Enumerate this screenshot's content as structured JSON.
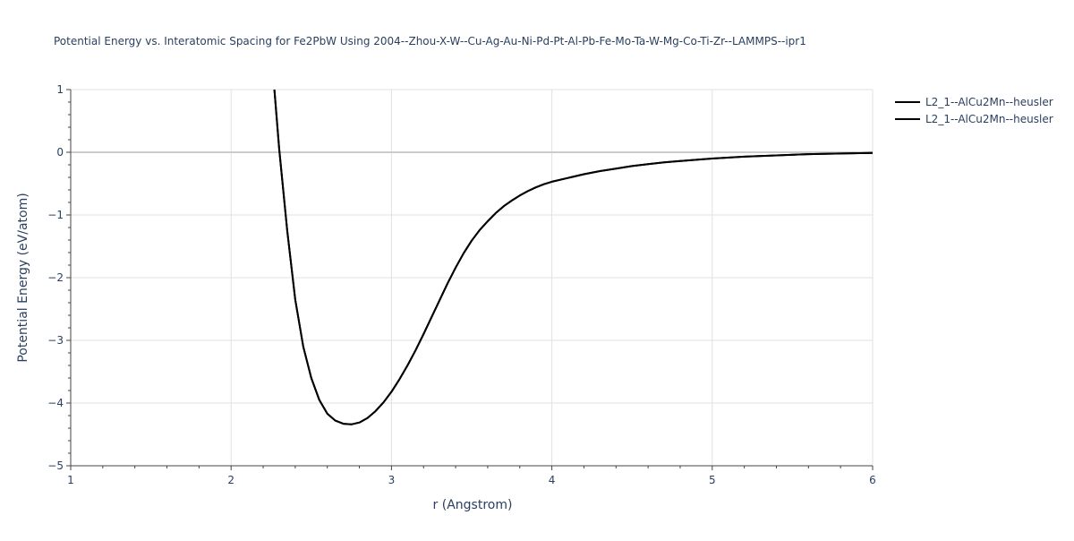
{
  "chart_data": {
    "type": "line",
    "title": "Potential Energy vs. Interatomic Spacing for Fe2PbW Using 2004--Zhou-X-W--Cu-Ag-Au-Ni-Pd-Pt-Al-Pb-Fe-Mo-Ta-W-Mg-Co-Ti-Zr--LAMMPS--ipr1",
    "xlabel": "r (Angstrom)",
    "ylabel": "Potential Energy (eV/atom)",
    "xlim": [
      1,
      6
    ],
    "ylim": [
      -5,
      1
    ],
    "xticks": [
      1,
      2,
      3,
      4,
      5,
      6
    ],
    "xtick_labels": [
      "1",
      "2",
      "3",
      "4",
      "5",
      "6"
    ],
    "yticks": [
      1,
      0,
      -1,
      -2,
      -3,
      -4,
      -5
    ],
    "ytick_labels": [
      "1",
      "0",
      "−1",
      "−2",
      "−3",
      "−4",
      "−5"
    ],
    "grid": true,
    "legend_position": "top-right",
    "series": [
      {
        "name": "L2_1--AlCu2Mn--heusler",
        "color": "#000000",
        "x": [
          2.27,
          2.3,
          2.35,
          2.4,
          2.45,
          2.5,
          2.55,
          2.6,
          2.65,
          2.7,
          2.75,
          2.8,
          2.85,
          2.9,
          2.95,
          3.0,
          3.05,
          3.1,
          3.15,
          3.2,
          3.25,
          3.3,
          3.35,
          3.4,
          3.45,
          3.5,
          3.55,
          3.6,
          3.65,
          3.7,
          3.75,
          3.8,
          3.85,
          3.9,
          3.95,
          4.0,
          4.1,
          4.2,
          4.3,
          4.4,
          4.5,
          4.6,
          4.7,
          4.8,
          4.9,
          5.0,
          5.2,
          5.4,
          5.6,
          5.8,
          6.0
        ],
        "y": [
          1.0,
          0.05,
          -1.25,
          -2.35,
          -3.1,
          -3.6,
          -3.95,
          -4.17,
          -4.28,
          -4.33,
          -4.34,
          -4.31,
          -4.24,
          -4.13,
          -3.99,
          -3.82,
          -3.62,
          -3.4,
          -3.16,
          -2.9,
          -2.63,
          -2.36,
          -2.09,
          -1.84,
          -1.61,
          -1.41,
          -1.24,
          -1.1,
          -0.97,
          -0.86,
          -0.77,
          -0.69,
          -0.62,
          -0.56,
          -0.51,
          -0.47,
          -0.41,
          -0.35,
          -0.3,
          -0.26,
          -0.22,
          -0.19,
          -0.16,
          -0.14,
          -0.12,
          -0.1,
          -0.07,
          -0.05,
          -0.03,
          -0.02,
          -0.01
        ]
      },
      {
        "name": "L2_1--AlCu2Mn--heusler",
        "color": "#000000",
        "x": [
          2.27,
          2.3,
          2.35,
          2.4,
          2.45,
          2.5,
          2.55,
          2.6,
          2.65,
          2.7,
          2.75,
          2.8,
          2.85,
          2.9,
          2.95,
          3.0,
          3.05,
          3.1,
          3.15,
          3.2,
          3.25,
          3.3,
          3.35,
          3.4,
          3.45,
          3.5,
          3.55,
          3.6,
          3.65,
          3.7,
          3.75,
          3.8,
          3.85,
          3.9,
          3.95,
          4.0,
          4.1,
          4.2,
          4.3,
          4.4,
          4.5,
          4.6,
          4.7,
          4.8,
          4.9,
          5.0,
          5.2,
          5.4,
          5.6,
          5.8,
          6.0
        ],
        "y": [
          1.0,
          0.05,
          -1.25,
          -2.35,
          -3.1,
          -3.6,
          -3.95,
          -4.17,
          -4.28,
          -4.33,
          -4.34,
          -4.31,
          -4.24,
          -4.13,
          -3.99,
          -3.82,
          -3.62,
          -3.4,
          -3.16,
          -2.9,
          -2.63,
          -2.36,
          -2.09,
          -1.84,
          -1.61,
          -1.41,
          -1.24,
          -1.1,
          -0.97,
          -0.86,
          -0.77,
          -0.69,
          -0.62,
          -0.56,
          -0.51,
          -0.47,
          -0.41,
          -0.35,
          -0.3,
          -0.26,
          -0.22,
          -0.19,
          -0.16,
          -0.14,
          -0.12,
          -0.1,
          -0.07,
          -0.05,
          -0.03,
          -0.02,
          -0.01
        ]
      }
    ]
  }
}
